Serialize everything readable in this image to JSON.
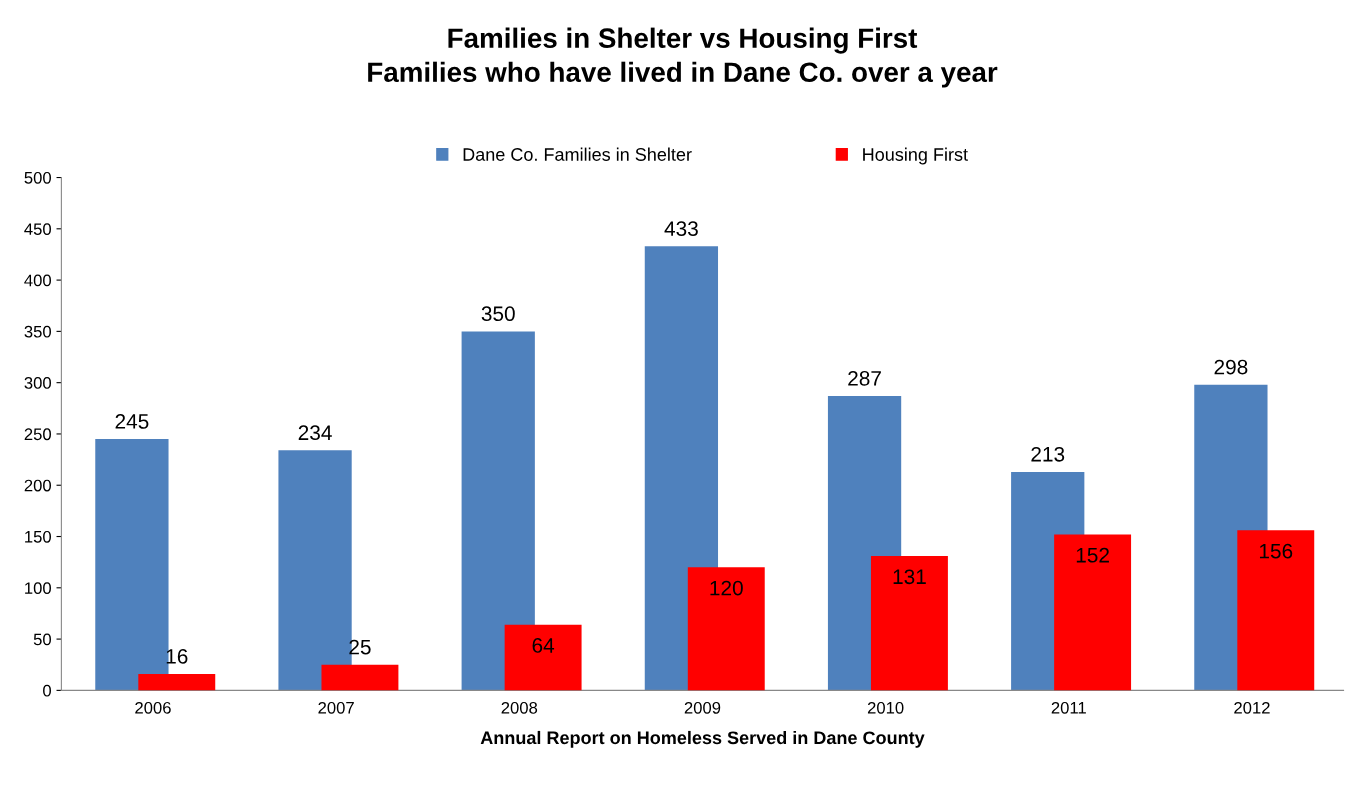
{
  "chart_data": {
    "type": "bar",
    "title": "Families in Shelter vs Housing First\nFamilies who have lived in Dane Co. over a year",
    "xlabel": "Annual Report on Homeless Served in Dane County",
    "categories": [
      "2006",
      "2007",
      "2008",
      "2009",
      "2010",
      "2011",
      "2012"
    ],
    "series": [
      {
        "name": "Dane Co. Families in Shelter",
        "color": "#4f81bd",
        "values": [
          245,
          234,
          350,
          433,
          287,
          213,
          298
        ]
      },
      {
        "name": "Housing First",
        "color": "#ff0000",
        "values": [
          16,
          25,
          64,
          120,
          131,
          152,
          156
        ]
      }
    ],
    "ylim": [
      0,
      500
    ],
    "yticks": [
      0,
      50,
      100,
      150,
      200,
      250,
      300,
      350,
      400,
      450,
      500
    ],
    "data_labels": true,
    "grid": false,
    "legend": "top"
  }
}
